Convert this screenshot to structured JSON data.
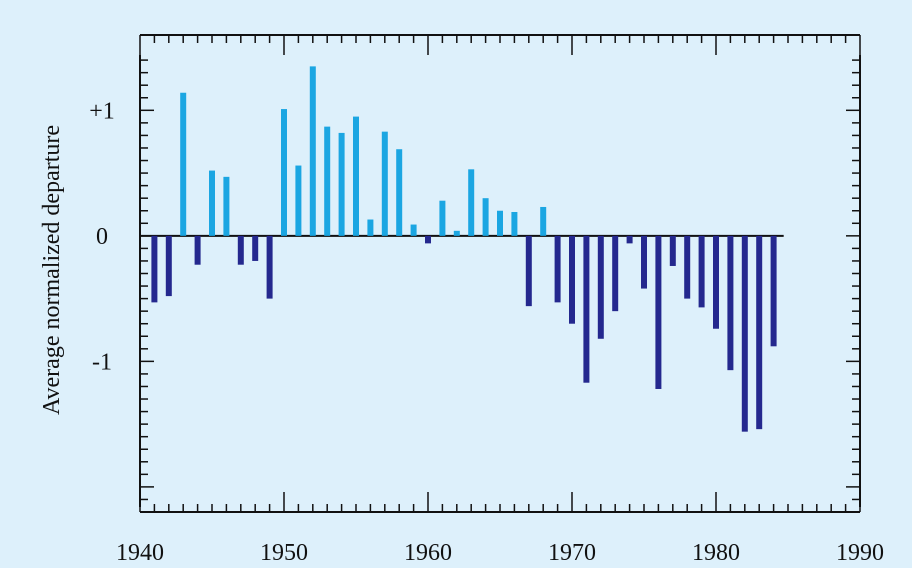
{
  "chart_data": {
    "type": "bar",
    "title": "",
    "xlabel": "",
    "ylabel": "Average normalized departure",
    "xlim": [
      1940,
      1990
    ],
    "ylim": [
      -2.2,
      1.6
    ],
    "x_ticks": [
      1940,
      1950,
      1960,
      1970,
      1980,
      1990
    ],
    "x_tick_labels": [
      "1940",
      "1950",
      "1960",
      "1970",
      "1980",
      "1990"
    ],
    "y_ticks": [
      1,
      0,
      -1
    ],
    "y_tick_labels": [
      "+1",
      "0",
      "-1"
    ],
    "grid": false,
    "legend": "none",
    "colors": {
      "background": "#ddf0fb",
      "axis": "#111111",
      "positive": "#1ba6e2",
      "negative": "#24288e"
    },
    "x": [
      1941,
      1942,
      1943,
      1944,
      1945,
      1946,
      1947,
      1948,
      1949,
      1950,
      1951,
      1952,
      1953,
      1954,
      1955,
      1956,
      1957,
      1958,
      1959,
      1960,
      1961,
      1962,
      1963,
      1964,
      1965,
      1966,
      1967,
      1968,
      1969,
      1970,
      1971,
      1972,
      1973,
      1974,
      1975,
      1976,
      1977,
      1978,
      1979,
      1980,
      1981,
      1982,
      1983,
      1984
    ],
    "values": [
      -0.53,
      -0.48,
      1.14,
      -0.23,
      0.52,
      0.47,
      -0.23,
      -0.2,
      -0.5,
      1.01,
      0.56,
      1.35,
      0.87,
      0.82,
      0.95,
      0.13,
      0.83,
      0.69,
      0.09,
      -0.06,
      0.28,
      0.04,
      0.53,
      0.3,
      0.2,
      0.19,
      -0.56,
      0.23,
      -0.53,
      -0.7,
      -1.17,
      -0.82,
      -0.6,
      -0.06,
      -0.42,
      -1.22,
      -0.24,
      -0.5,
      -0.57,
      -0.74,
      -1.07,
      -1.56,
      -1.54,
      -0.88
    ]
  }
}
